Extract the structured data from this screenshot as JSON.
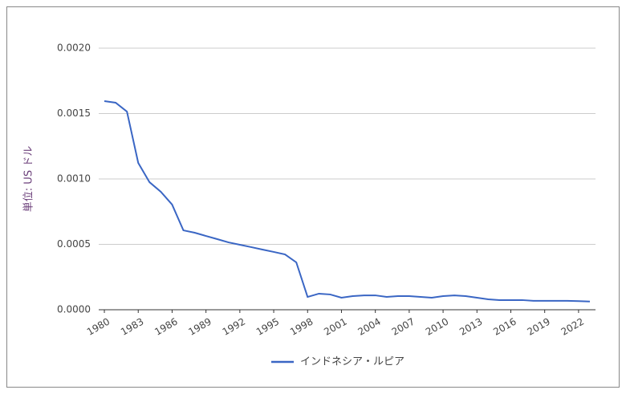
{
  "chart_data": {
    "type": "line",
    "y_label": "単位: US ドル",
    "x": [
      1980,
      1981,
      1982,
      1983,
      1984,
      1985,
      1986,
      1987,
      1988,
      1989,
      1990,
      1991,
      1992,
      1993,
      1994,
      1995,
      1996,
      1997,
      1998,
      1999,
      2000,
      2001,
      2002,
      2003,
      2004,
      2005,
      2006,
      2007,
      2008,
      2009,
      2010,
      2011,
      2012,
      2013,
      2014,
      2015,
      2016,
      2017,
      2018,
      2019,
      2020,
      2021,
      2022,
      2023
    ],
    "series": [
      {
        "name": "インドネシア・ルピア",
        "color": "#3a66c4",
        "values": [
          0.001595,
          0.001583,
          0.001515,
          0.001123,
          0.000975,
          0.000902,
          0.000804,
          0.000607,
          0.000589,
          0.000564,
          0.00054,
          0.000515,
          0.000497,
          0.000479,
          0.00046,
          0.000442,
          0.000423,
          0.000362,
          9.8e-05,
          0.000123,
          0.000117,
          9.2e-05,
          0.000104,
          0.00011,
          0.00011,
          9.8e-05,
          0.000104,
          0.000104,
          9.8e-05,
          9.2e-05,
          0.000104,
          0.00011,
          0.000104,
          9.2e-05,
          8e-05,
          7.4e-05,
          7.4e-05,
          7.4e-05,
          6.8e-05,
          6.8e-05,
          6.8e-05,
          6.8e-05,
          6.6e-05,
          6.3e-05
        ]
      }
    ],
    "xlim": [
      1979.5,
      2023.5
    ],
    "xticks": [
      1980,
      1983,
      1986,
      1989,
      1992,
      1995,
      1998,
      2001,
      2004,
      2007,
      2010,
      2013,
      2016,
      2019,
      2022
    ],
    "ylim": [
      0,
      0.002
    ],
    "yticks": [
      {
        "value": 0,
        "label": "0.0000"
      },
      0.0005,
      {
        "value": 0.001,
        "label": "0.0010"
      },
      0.0015,
      {
        "value": 0.002,
        "label": "0.0020"
      }
    ],
    "grid": true,
    "legend": "bottom"
  }
}
